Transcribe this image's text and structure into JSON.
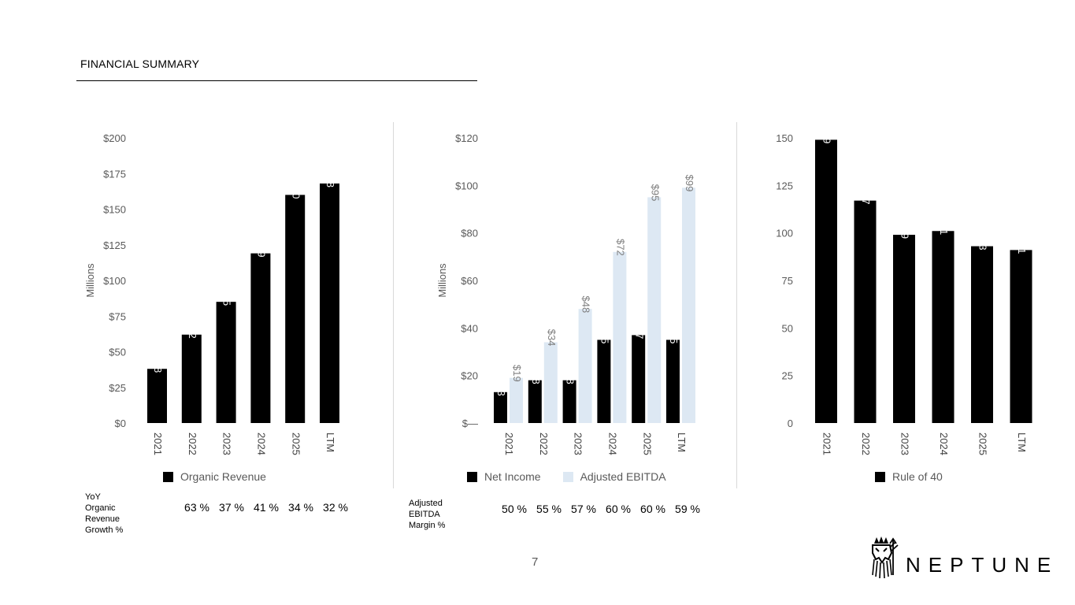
{
  "header": {
    "title": "FINANCIAL SUMMARY"
  },
  "page_number": "7",
  "logo": {
    "text": "NEPTUNE",
    "icon": "neptune-warrior-logo-icon"
  },
  "colors": {
    "black": "#000000",
    "light_blue": "#dde8f3",
    "axis_text": "#595959"
  },
  "chart_data": [
    {
      "id": "revenue",
      "type": "bar",
      "categories": [
        "2021",
        "2022",
        "2023",
        "2024",
        "2025",
        "LTM"
      ],
      "ylabel": "Millions",
      "ylim": [
        0,
        200
      ],
      "yticks": [
        "$0",
        "$25",
        "$50",
        "$75",
        "$100",
        "$125",
        "$150",
        "$175",
        "$200"
      ],
      "series": [
        {
          "name": "Organic Revenue",
          "color": "#000000",
          "values": [
            38,
            62,
            85,
            119,
            160,
            168
          ],
          "labels": [
            "$38",
            "$62",
            "$85",
            "$119",
            "$160",
            "$168"
          ]
        }
      ]
    },
    {
      "id": "profit",
      "type": "bar",
      "categories": [
        "2021",
        "2022",
        "2023",
        "2024",
        "2025",
        "LTM"
      ],
      "ylabel": "Millions",
      "ylim": [
        0,
        120
      ],
      "yticks": [
        "$—",
        "$20",
        "$40",
        "$60",
        "$80",
        "$100",
        "$120"
      ],
      "series": [
        {
          "name": "Net Income",
          "color": "#000000",
          "values": [
            13,
            18,
            18,
            35,
            37,
            35
          ],
          "labels": [
            "$13",
            "$18",
            "$18",
            "$35",
            "$37",
            "$35"
          ]
        },
        {
          "name": "Adjusted EBITDA",
          "color": "#dde8f3",
          "values": [
            19,
            34,
            48,
            72,
            95,
            99
          ],
          "labels": [
            "$19",
            "$34",
            "$48",
            "$72",
            "$95",
            "$99"
          ]
        }
      ]
    },
    {
      "id": "rule40",
      "type": "bar",
      "categories": [
        "2021",
        "2022",
        "2023",
        "2024",
        "2025",
        "LTM"
      ],
      "ylabel": "",
      "ylim": [
        0,
        150
      ],
      "yticks": [
        "0",
        "25",
        "50",
        "75",
        "100",
        "125",
        "150"
      ],
      "series": [
        {
          "name": "Rule of 40",
          "color": "#000000",
          "values": [
            149,
            117,
            99,
            101,
            93,
            91
          ],
          "labels": [
            "149",
            "117",
            "99",
            "101",
            "93",
            "91"
          ]
        }
      ]
    }
  ],
  "growth_row": {
    "label": [
      "YoY",
      "Organic",
      "Revenue",
      "Growth %"
    ],
    "values": [
      "63 %",
      "37 %",
      "41 %",
      "34 %",
      "32 %"
    ]
  },
  "margin_row": {
    "label": [
      "Adjusted",
      "EBITDA",
      "Margin %"
    ],
    "values": [
      "50 %",
      "55 %",
      "57 %",
      "60 %",
      "60 %",
      "59 %"
    ]
  }
}
